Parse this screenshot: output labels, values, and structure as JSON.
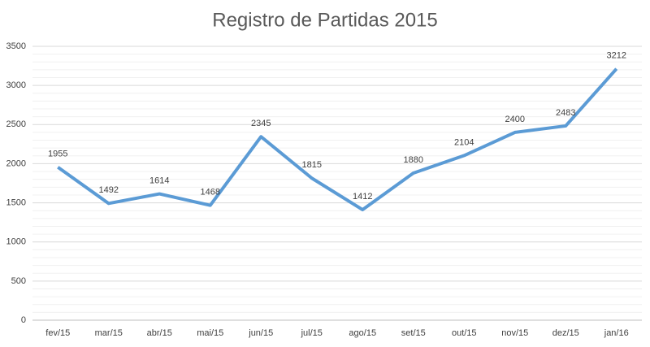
{
  "chart_data": {
    "type": "line",
    "title": "Registro de Partidas 2015",
    "categories": [
      "fev/15",
      "mar/15",
      "abr/15",
      "mai/15",
      "jun/15",
      "jul/15",
      "ago/15",
      "set/15",
      "out/15",
      "nov/15",
      "dez/15",
      "jan/16"
    ],
    "values": [
      1955,
      1492,
      1614,
      1468,
      2345,
      1815,
      1412,
      1880,
      2104,
      2400,
      2483,
      3212
    ],
    "color": "#5b9bd5",
    "ylim": [
      0,
      3500
    ],
    "yticks": [
      0,
      500,
      1000,
      1500,
      2000,
      2500,
      3000,
      3500
    ],
    "grid": true,
    "minor_grid": true,
    "data_labels": true
  }
}
